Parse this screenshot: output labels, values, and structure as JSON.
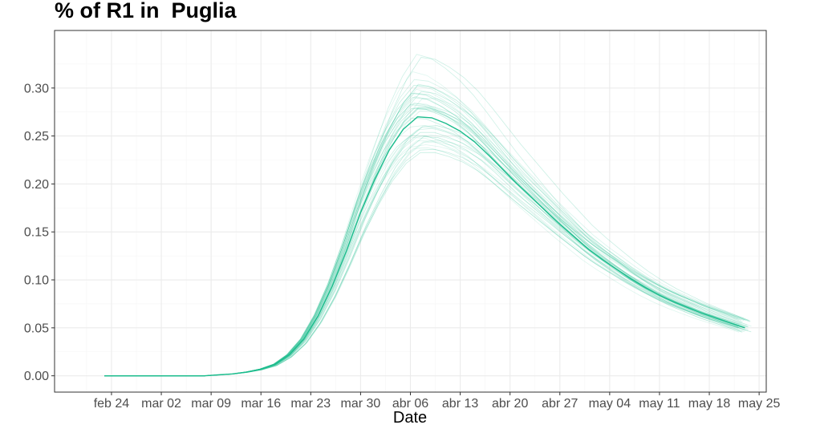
{
  "chart_data": {
    "type": "line",
    "title": "% of R1 in  Puglia",
    "xlabel": "Date",
    "ylabel": "",
    "x_ticks": [
      "feb 24",
      "mar 02",
      "mar 09",
      "mar 16",
      "mar 23",
      "mar 30",
      "abr 06",
      "abr 13",
      "abr 20",
      "abr 27",
      "may 04",
      "may 11",
      "may 18",
      "may 25"
    ],
    "y_ticks": [
      "0.00",
      "0.05",
      "0.10",
      "0.15",
      "0.20",
      "0.25",
      "0.30"
    ],
    "ylim": [
      -0.017,
      0.36
    ],
    "x_range": [
      "feb 16",
      "may 26"
    ],
    "grid": true,
    "color": "#1abc8c",
    "series": [
      {
        "role": "median",
        "x": [
          "feb 23",
          "mar 01",
          "mar 08",
          "mar 10",
          "mar 12",
          "mar 14",
          "mar 16",
          "mar 18",
          "mar 20",
          "mar 22",
          "mar 24",
          "mar 26",
          "mar 28",
          "mar 30",
          "apr 01",
          "apr 03",
          "apr 05",
          "apr 07",
          "apr 09",
          "apr 11",
          "apr 13",
          "apr 15",
          "apr 17",
          "apr 19",
          "apr 21",
          "apr 23",
          "apr 25",
          "apr 27",
          "apr 29",
          "may 01",
          "may 03",
          "may 05",
          "may 07",
          "may 09",
          "may 11",
          "may 13",
          "may 15",
          "may 17",
          "may 19",
          "may 21",
          "may 23"
        ],
        "y": [
          0.0,
          0.0,
          0.0,
          0.001,
          0.002,
          0.004,
          0.007,
          0.012,
          0.022,
          0.038,
          0.062,
          0.093,
          0.13,
          0.17,
          0.205,
          0.235,
          0.257,
          0.27,
          0.269,
          0.263,
          0.255,
          0.244,
          0.23,
          0.215,
          0.2,
          0.186,
          0.172,
          0.158,
          0.145,
          0.132,
          0.121,
          0.111,
          0.101,
          0.092,
          0.084,
          0.077,
          0.071,
          0.065,
          0.06,
          0.055,
          0.05
        ]
      }
    ],
    "ensemble": {
      "count": 40,
      "y_peak_range": [
        0.23,
        0.34
      ],
      "y_end_range": [
        0.045,
        0.06
      ]
    }
  }
}
